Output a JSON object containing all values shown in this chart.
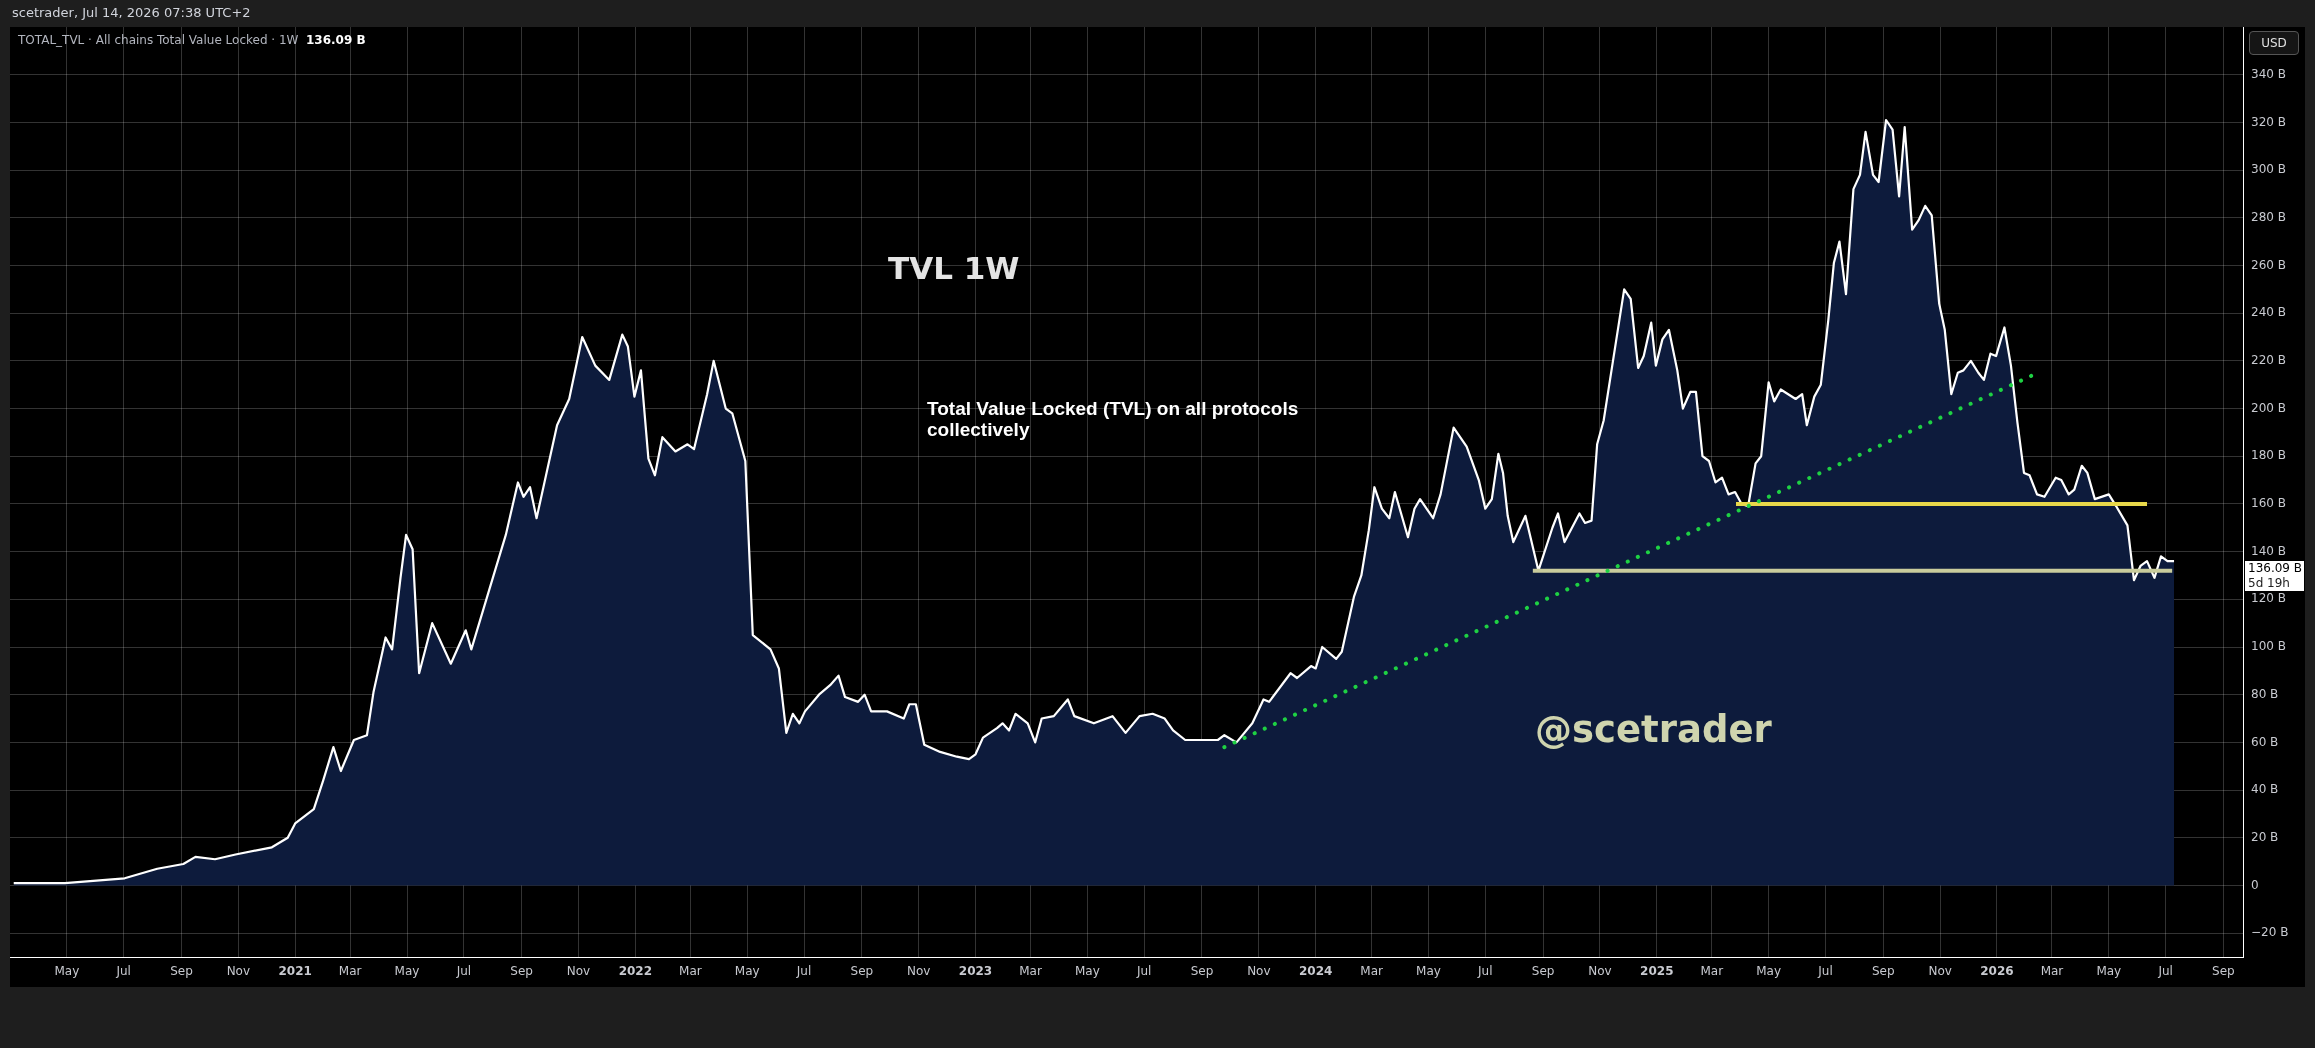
{
  "chart_data": {
    "type": "area",
    "title": "TVL 1W",
    "ylabel": "USD",
    "annotations": [
      "scetrader, Jul 14, 2026 07:38 UTC+2",
      "TOTAL_TVL · All chains Total Value Locked · 1W",
      "136.09 B",
      "Total Value Locked (TVL) on all protocols collectively",
      "@scetrader",
      "136.09 B",
      "5d 19h"
    ],
    "x": [
      "2020-03-05",
      "2020-04-29",
      "2020-07-02",
      "2020-08-06",
      "2020-09-03",
      "2020-09-16",
      "2020-10-07",
      "2020-10-29",
      "2020-12-07",
      "2020-12-24",
      "2021-01-01",
      "2021-01-21",
      "2021-01-31",
      "2021-02-11",
      "2021-02-19",
      "2021-03-05",
      "2021-03-19",
      "2021-03-26",
      "2021-04-08",
      "2021-04-15",
      "2021-04-24",
      "2021-04-30",
      "2021-05-07",
      "2021-05-14",
      "2021-05-28",
      "2021-06-17",
      "2021-07-03",
      "2021-07-09",
      "2021-07-29",
      "2021-08-15",
      "2021-08-28",
      "2021-09-03",
      "2021-09-10",
      "2021-09-17",
      "2021-10-09",
      "2021-10-22",
      "2021-11-05",
      "2021-11-19",
      "2021-12-04",
      "2021-12-18",
      "2021-12-24",
      "2021-12-31",
      "2022-01-07",
      "2022-01-15",
      "2022-01-22",
      "2022-01-30",
      "2022-02-13",
      "2022-02-26",
      "2022-03-05",
      "2022-03-19",
      "2022-03-26",
      "2022-04-08",
      "2022-04-15",
      "2022-04-29",
      "2022-05-07",
      "2022-05-26",
      "2022-06-04",
      "2022-06-12",
      "2022-06-19",
      "2022-06-26",
      "2022-07-02",
      "2022-07-17",
      "2022-07-29",
      "2022-08-07",
      "2022-08-14",
      "2022-08-28",
      "2022-09-04",
      "2022-09-11",
      "2022-09-28",
      "2022-10-16",
      "2022-10-22",
      "2022-10-29",
      "2022-11-07",
      "2022-11-24",
      "2022-12-12",
      "2022-12-25",
      "2023-01-01",
      "2023-01-09",
      "2023-01-24",
      "2023-01-30",
      "2023-02-06",
      "2023-02-13",
      "2023-02-26",
      "2023-03-06",
      "2023-03-13",
      "2023-03-26",
      "2023-04-10",
      "2023-04-17",
      "2023-05-08",
      "2023-05-28",
      "2023-06-11",
      "2023-06-26",
      "2023-07-10",
      "2023-07-23",
      "2023-08-01",
      "2023-08-14",
      "2023-09-03",
      "2023-09-18",
      "2023-09-25",
      "2023-10-08",
      "2023-10-25",
      "2023-11-06",
      "2023-11-12",
      "2023-12-05",
      "2023-12-12",
      "2023-12-27",
      "2024-01-01",
      "2024-01-08",
      "2024-01-23",
      "2024-01-29",
      "2024-02-11",
      "2024-02-19",
      "2024-02-27",
      "2024-03-04",
      "2024-03-12",
      "2024-03-20",
      "2024-03-26",
      "2024-04-09",
      "2024-04-16",
      "2024-04-22",
      "2024-05-06",
      "2024-05-14",
      "2024-05-28",
      "2024-06-11",
      "2024-06-24",
      "2024-07-01",
      "2024-07-08",
      "2024-07-15",
      "2024-07-20",
      "2024-07-25",
      "2024-07-31",
      "2024-08-13",
      "2024-08-27",
      "2024-09-11",
      "2024-09-17",
      "2024-09-24",
      "2024-10-10",
      "2024-10-16",
      "2024-10-23",
      "2024-10-29",
      "2024-11-05",
      "2024-11-21",
      "2024-11-27",
      "2024-12-04",
      "2024-12-12",
      "2024-12-18",
      "2024-12-26",
      "2024-12-31",
      "2025-01-07",
      "2025-01-14",
      "2025-01-23",
      "2025-01-29",
      "2025-02-06",
      "2025-02-12",
      "2025-02-19",
      "2025-02-26",
      "2025-03-05",
      "2025-03-12",
      "2025-03-19",
      "2025-03-26",
      "2025-04-02",
      "2025-04-09",
      "2025-04-17",
      "2025-04-23",
      "2025-05-01",
      "2025-05-07",
      "2025-05-14",
      "2025-05-30",
      "2025-06-06",
      "2025-06-11",
      "2025-06-19",
      "2025-06-26",
      "2025-07-04",
      "2025-07-10",
      "2025-07-16",
      "2025-07-23",
      "2025-07-31",
      "2025-08-07",
      "2025-08-13",
      "2025-08-21",
      "2025-08-27",
      "2025-09-04",
      "2025-09-11",
      "2025-09-18",
      "2025-09-24",
      "2025-10-02",
      "2025-10-09",
      "2025-10-16",
      "2025-10-23",
      "2025-10-31",
      "2025-11-06",
      "2025-11-13",
      "2025-11-20",
      "2025-11-26",
      "2025-12-04",
      "2025-12-12",
      "2025-12-18",
      "2025-12-25",
      "2025-12-31",
      "2026-01-09",
      "2026-01-16",
      "2026-01-23",
      "2026-01-30",
      "2026-02-05",
      "2026-02-13",
      "2026-02-21",
      "2026-03-05",
      "2026-03-11",
      "2026-03-19",
      "2026-03-25",
      "2026-04-02",
      "2026-04-08",
      "2026-04-16",
      "2026-05-01",
      "2026-05-09",
      "2026-05-21",
      "2026-05-28",
      "2026-06-04",
      "2026-06-11",
      "2026-06-19",
      "2026-06-26",
      "2026-07-03",
      "2026-07-10"
    ],
    "series": [
      {
        "color": "#0d1b3c",
        "values": [
          1,
          1,
          3,
          7,
          9,
          12,
          11,
          13,
          16,
          20,
          26,
          32,
          44,
          58,
          48,
          61,
          63,
          81,
          104,
          99,
          129,
          147,
          141,
          89,
          110,
          93,
          107,
          99,
          125,
          147,
          169,
          163,
          167,
          154,
          193,
          204,
          230,
          218,
          212,
          231,
          226,
          205,
          216,
          179,
          172,
          188,
          182,
          185,
          183,
          206,
          220,
          200,
          198,
          178,
          105,
          99,
          91,
          64,
          72,
          68,
          73,
          80,
          84,
          88,
          79,
          77,
          80,
          73,
          73,
          70,
          76,
          76,
          59,
          56,
          54,
          53,
          55,
          62,
          66,
          68,
          65,
          72,
          68,
          60,
          70,
          71,
          78,
          71,
          68,
          71,
          64,
          71,
          72,
          70,
          65,
          61,
          61,
          61,
          63,
          60,
          68,
          78,
          77,
          89,
          87,
          92,
          91,
          100,
          95,
          98,
          121,
          130,
          149,
          167,
          158,
          154,
          165,
          146,
          158,
          162,
          154,
          164,
          192,
          184,
          170,
          158,
          162,
          181,
          173,
          155,
          144,
          155,
          132,
          150,
          156,
          144,
          156,
          152,
          153,
          185,
          195,
          235,
          250,
          246,
          217,
          222,
          236,
          218,
          229,
          233,
          216,
          200,
          207,
          207,
          180,
          178,
          169,
          171,
          164,
          165,
          160,
          159,
          177,
          180,
          211,
          203,
          208,
          204,
          206,
          193,
          205,
          210,
          237,
          261,
          270,
          248,
          292,
          298,
          316,
          298,
          295,
          321,
          317,
          289,
          318,
          275,
          279,
          285,
          281,
          244,
          233,
          206,
          215,
          216,
          220,
          215,
          212,
          223,
          222,
          234,
          218,
          194,
          173,
          172,
          164,
          163,
          171,
          170,
          164,
          166,
          176,
          173,
          162,
          164,
          159,
          151,
          128,
          134,
          136,
          129,
          138,
          136,
          136
        ]
      },
      {
        "type": "line",
        "line_style": "dotted",
        "color": "#1ed143",
        "x": [
          "2023-09-25",
          "2026-02-14"
        ],
        "values": [
          58,
          215
        ]
      },
      {
        "type": "line",
        "color": "#e8d84a",
        "x": [
          "2025-03-27",
          "2026-06-11"
        ],
        "values": [
          160,
          160
        ]
      },
      {
        "type": "line",
        "color": "#c9cc9c",
        "x": [
          "2024-08-21",
          "2026-07-08"
        ],
        "values": [
          132,
          132
        ]
      }
    ],
    "xlim": [
      "2020-03-01",
      "2026-09-22"
    ],
    "xticks": [
      {
        "value": "2020-05-01",
        "label": "May"
      },
      {
        "value": "2020-07-01",
        "label": "Jul"
      },
      {
        "value": "2020-09-01",
        "label": "Sep"
      },
      {
        "value": "2020-11-01",
        "label": "Nov"
      },
      {
        "value": "2021-01-01",
        "label": "2021"
      },
      {
        "value": "2021-03-01",
        "label": "Mar"
      },
      {
        "value": "2021-05-01",
        "label": "May"
      },
      {
        "value": "2021-07-01",
        "label": "Jul"
      },
      {
        "value": "2021-09-01",
        "label": "Sep"
      },
      {
        "value": "2021-11-01",
        "label": "Nov"
      },
      {
        "value": "2022-01-01",
        "label": "2022"
      },
      {
        "value": "2022-03-01",
        "label": "Mar"
      },
      {
        "value": "2022-05-01",
        "label": "May"
      },
      {
        "value": "2022-07-01",
        "label": "Jul"
      },
      {
        "value": "2022-09-01",
        "label": "Sep"
      },
      {
        "value": "2022-11-01",
        "label": "Nov"
      },
      {
        "value": "2023-01-01",
        "label": "2023"
      },
      {
        "value": "2023-03-01",
        "label": "Mar"
      },
      {
        "value": "2023-05-01",
        "label": "May"
      },
      {
        "value": "2023-07-01",
        "label": "Jul"
      },
      {
        "value": "2023-09-01",
        "label": "Sep"
      },
      {
        "value": "2023-11-01",
        "label": "Nov"
      },
      {
        "value": "2024-01-01",
        "label": "2024"
      },
      {
        "value": "2024-03-01",
        "label": "Mar"
      },
      {
        "value": "2024-05-01",
        "label": "May"
      },
      {
        "value": "2024-07-01",
        "label": "Jul"
      },
      {
        "value": "2024-09-01",
        "label": "Sep"
      },
      {
        "value": "2024-11-01",
        "label": "Nov"
      },
      {
        "value": "2025-01-01",
        "label": "2025"
      },
      {
        "value": "2025-03-01",
        "label": "Mar"
      },
      {
        "value": "2025-05-01",
        "label": "May"
      },
      {
        "value": "2025-07-01",
        "label": "Jul"
      },
      {
        "value": "2025-09-01",
        "label": "Sep"
      },
      {
        "value": "2025-11-01",
        "label": "Nov"
      },
      {
        "value": "2026-01-01",
        "label": "2026"
      },
      {
        "value": "2026-03-01",
        "label": "Mar"
      },
      {
        "value": "2026-05-01",
        "label": "May"
      },
      {
        "value": "2026-07-01",
        "label": "Jul"
      },
      {
        "value": "2026-09-01",
        "label": "Sep"
      }
    ],
    "ylim": [
      -30,
      360
    ],
    "yticks": [
      {
        "value": -20,
        "label": "−20 B"
      },
      0,
      {
        "value": 20,
        "label": "20 B"
      },
      {
        "value": 40,
        "label": "40 B"
      },
      {
        "value": 60,
        "label": "60 B"
      },
      {
        "value": 80,
        "label": "80 B"
      },
      {
        "value": 100,
        "label": "100 B"
      },
      {
        "value": 120,
        "label": "120 B"
      },
      {
        "value": 140,
        "label": "140 B"
      },
      {
        "value": 160,
        "label": "160 B"
      },
      {
        "value": 180,
        "label": "180 B"
      },
      {
        "value": 200,
        "label": "200 B"
      },
      {
        "value": 220,
        "label": "220 B"
      },
      {
        "value": 240,
        "label": "240 B"
      },
      {
        "value": 260,
        "label": "260 B"
      },
      {
        "value": 280,
        "label": "280 B"
      },
      {
        "value": 300,
        "label": "300 B"
      },
      {
        "value": 320,
        "label": "320 B"
      },
      {
        "value": 340,
        "label": "340 B"
      }
    ],
    "grid": true
  }
}
